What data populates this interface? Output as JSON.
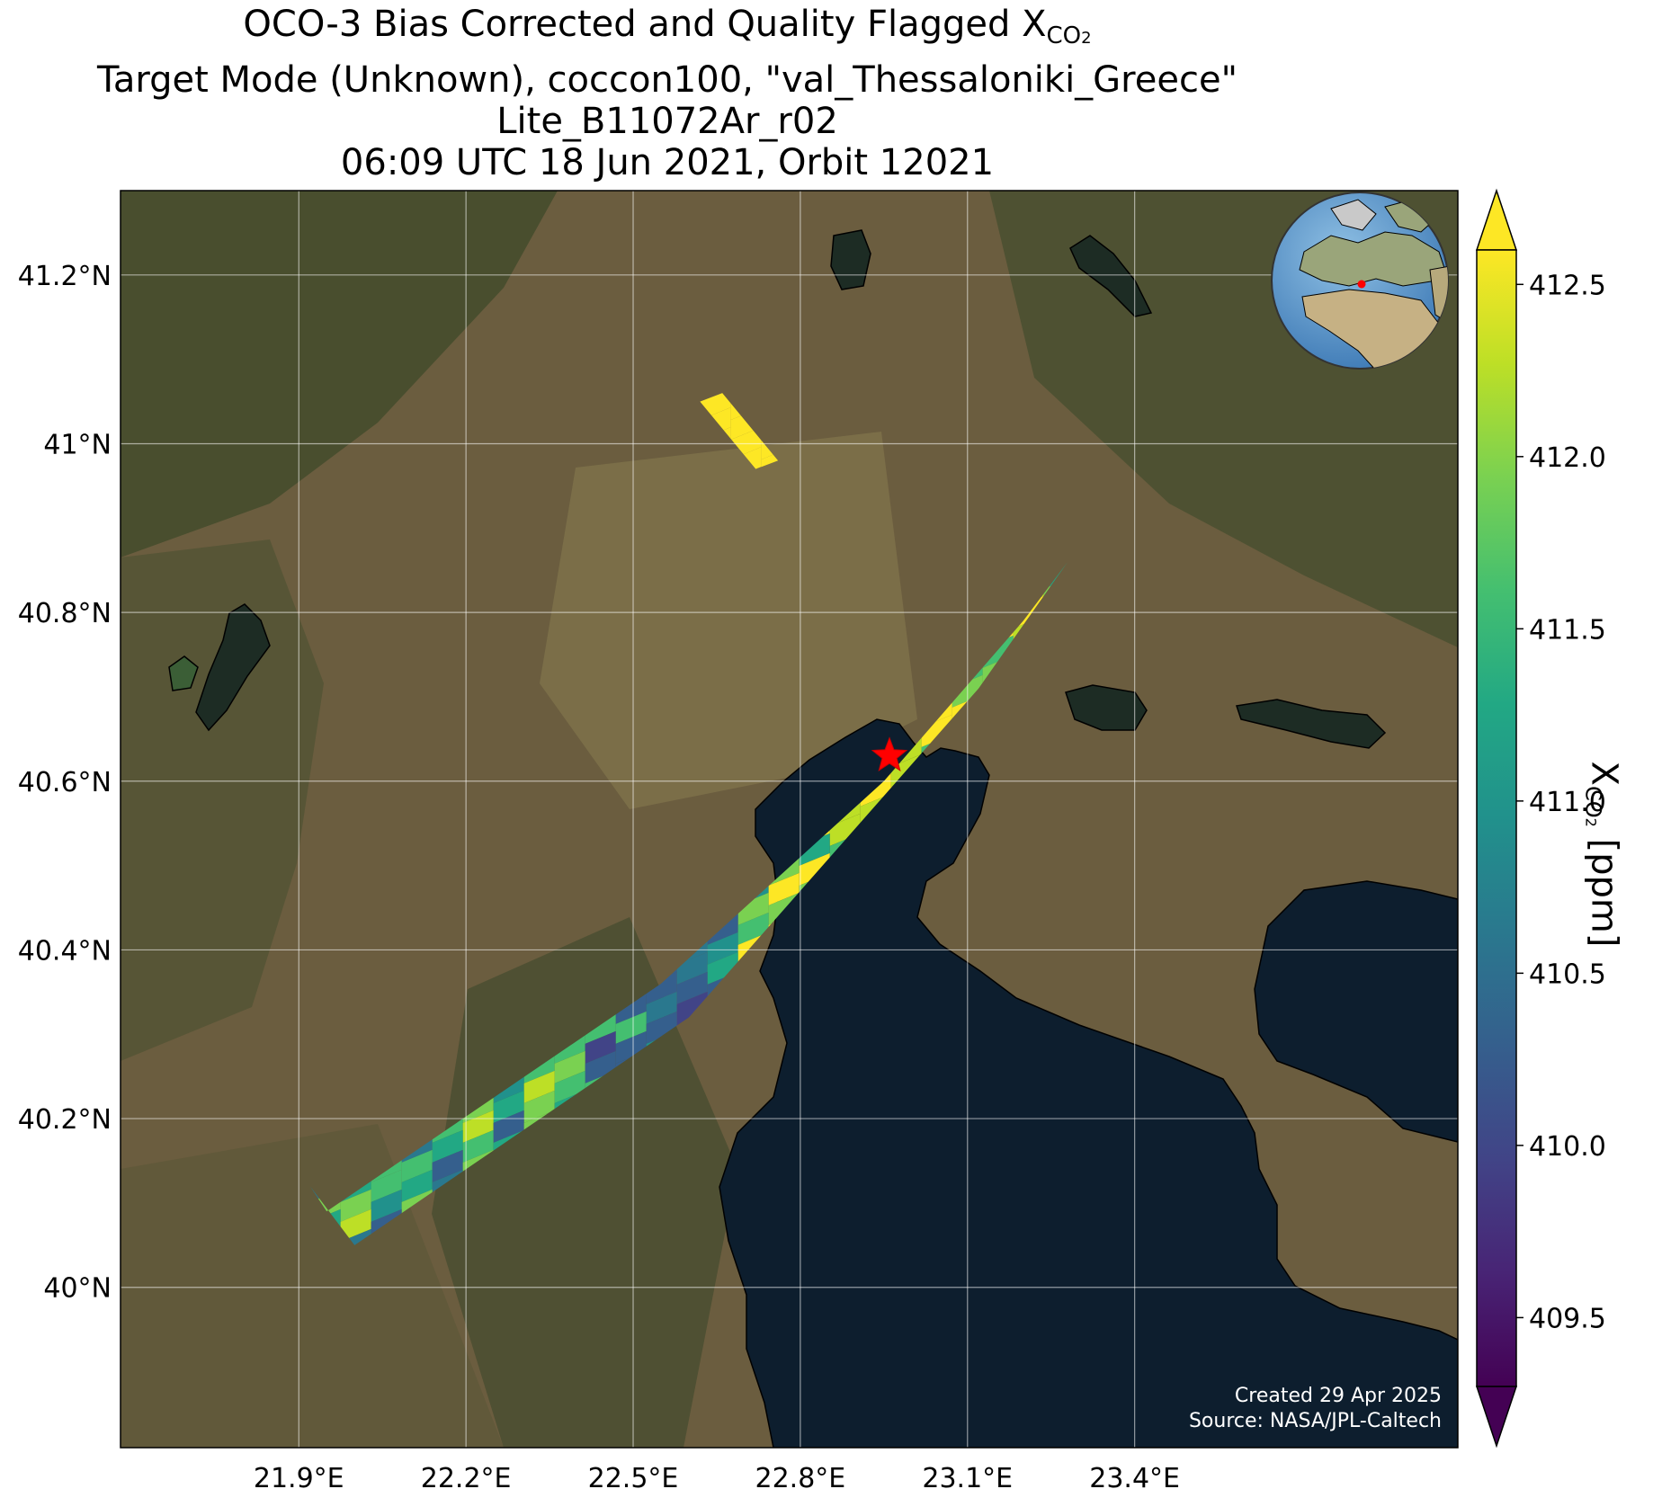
{
  "title": {
    "line1_main": "OCO-3 Bias Corrected and Quality Flagged X",
    "line1_sub": "CO",
    "line1_subsub": "2",
    "line2": "Target Mode (Unknown), coccon100, \"val_Thessaloniki_Greece\"",
    "line3": "Lite_B11072Ar_r02",
    "line4": "06:09 UTC 18 Jun 2021, Orbit 12021"
  },
  "credits": {
    "created": "Created 29 Apr 2025",
    "source": "Source: NASA/JPL-Caltech"
  },
  "colorbar": {
    "label_main": "X",
    "label_sub": "CO",
    "label_subsub": "2",
    "label_unit": " [ppm]",
    "ticks": [
      "409.5",
      "410.0",
      "410.5",
      "411.0",
      "411.5",
      "412.0",
      "412.5"
    ],
    "colormap": "viridis",
    "extend": "both"
  },
  "colors": {
    "sea": "#0d1e2e",
    "target_star": "#ff0000",
    "gridline": "#ffffff"
  },
  "chart_data": {
    "type": "map",
    "lon_ticks": [
      "21.9°E",
      "22.2°E",
      "22.5°E",
      "22.8°E",
      "23.1°E",
      "23.4°E"
    ],
    "lat_ticks": [
      "41.2°N",
      "41°N",
      "40.8°N",
      "40.6°N",
      "40.4°N",
      "40.2°N",
      "40°N"
    ],
    "lon_tick_values": [
      21.9,
      22.2,
      22.5,
      22.8,
      23.1,
      23.4
    ],
    "lat_tick_values": [
      41.2,
      41.0,
      40.8,
      40.6,
      40.4,
      40.2,
      40.0
    ],
    "lon_range": [
      21.58,
      23.98
    ],
    "lat_range": [
      39.81,
      41.3
    ],
    "value_range": [
      409.3,
      412.6
    ],
    "target": {
      "name": "val_Thessaloniki_Greece",
      "lon": 22.96,
      "lat": 40.63,
      "marker": "star"
    },
    "inset_globe": {
      "projection": "orthographic",
      "center_region": "Europe/Africa",
      "marker": "target"
    },
    "swaths": [
      {
        "name": "main-swath",
        "polygon": [
          [
            21.92,
            40.12
          ],
          [
            22.0,
            40.05
          ],
          [
            22.6,
            40.32
          ],
          [
            23.12,
            40.71
          ],
          [
            23.28,
            40.86
          ],
          [
            23.2,
            40.79
          ],
          [
            22.95,
            40.6
          ],
          [
            22.55,
            40.36
          ],
          [
            21.95,
            40.09
          ]
        ]
      },
      {
        "name": "northern-strip",
        "polygon": [
          [
            22.66,
            41.06
          ],
          [
            22.76,
            40.98
          ],
          [
            22.72,
            40.97
          ],
          [
            22.62,
            41.05
          ]
        ]
      }
    ]
  }
}
